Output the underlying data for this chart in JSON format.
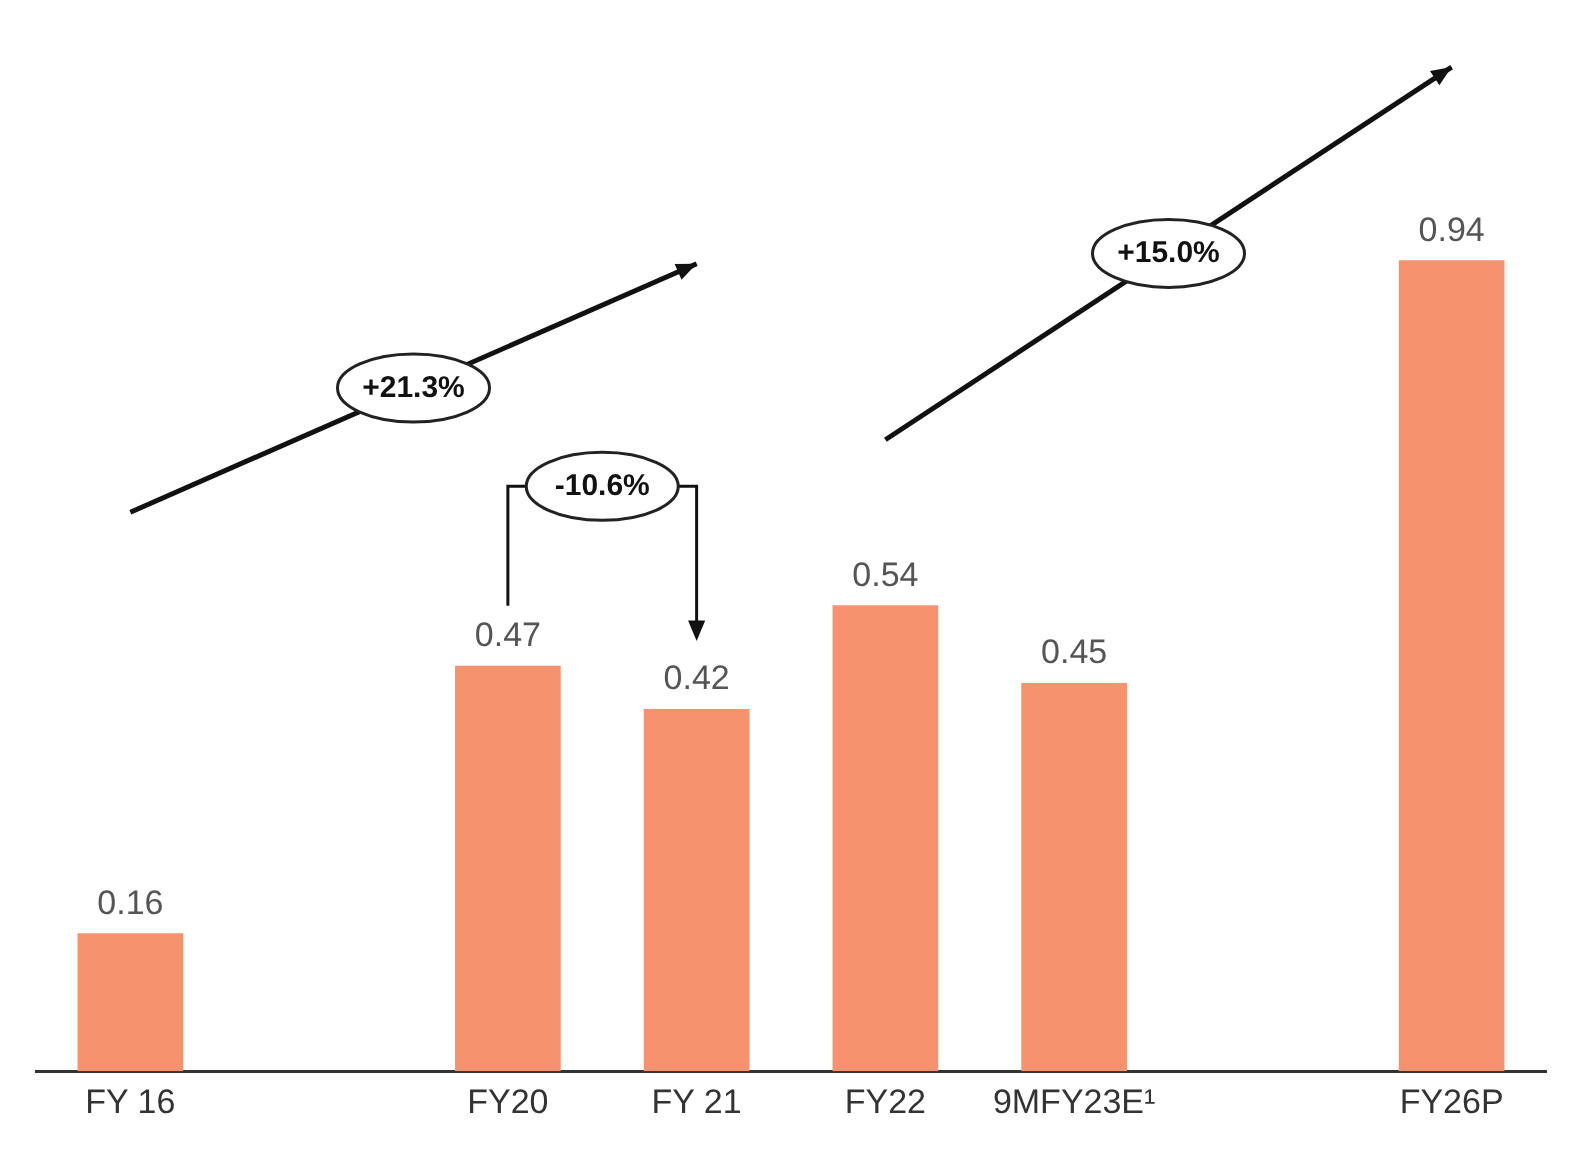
{
  "chart_data": {
    "type": "bar",
    "categories": [
      "FY 16",
      null,
      "FY20",
      "FY 21",
      "FY22",
      "9MFY23E¹",
      null,
      "FY26P"
    ],
    "values": [
      0.16,
      null,
      0.47,
      0.42,
      0.54,
      0.45,
      null,
      0.94
    ],
    "color": "#f7926f",
    "data_labels": true,
    "grid": false,
    "legend": false,
    "annotations": [
      "+21.3%",
      "-10.6%",
      "+15.0%"
    ]
  }
}
